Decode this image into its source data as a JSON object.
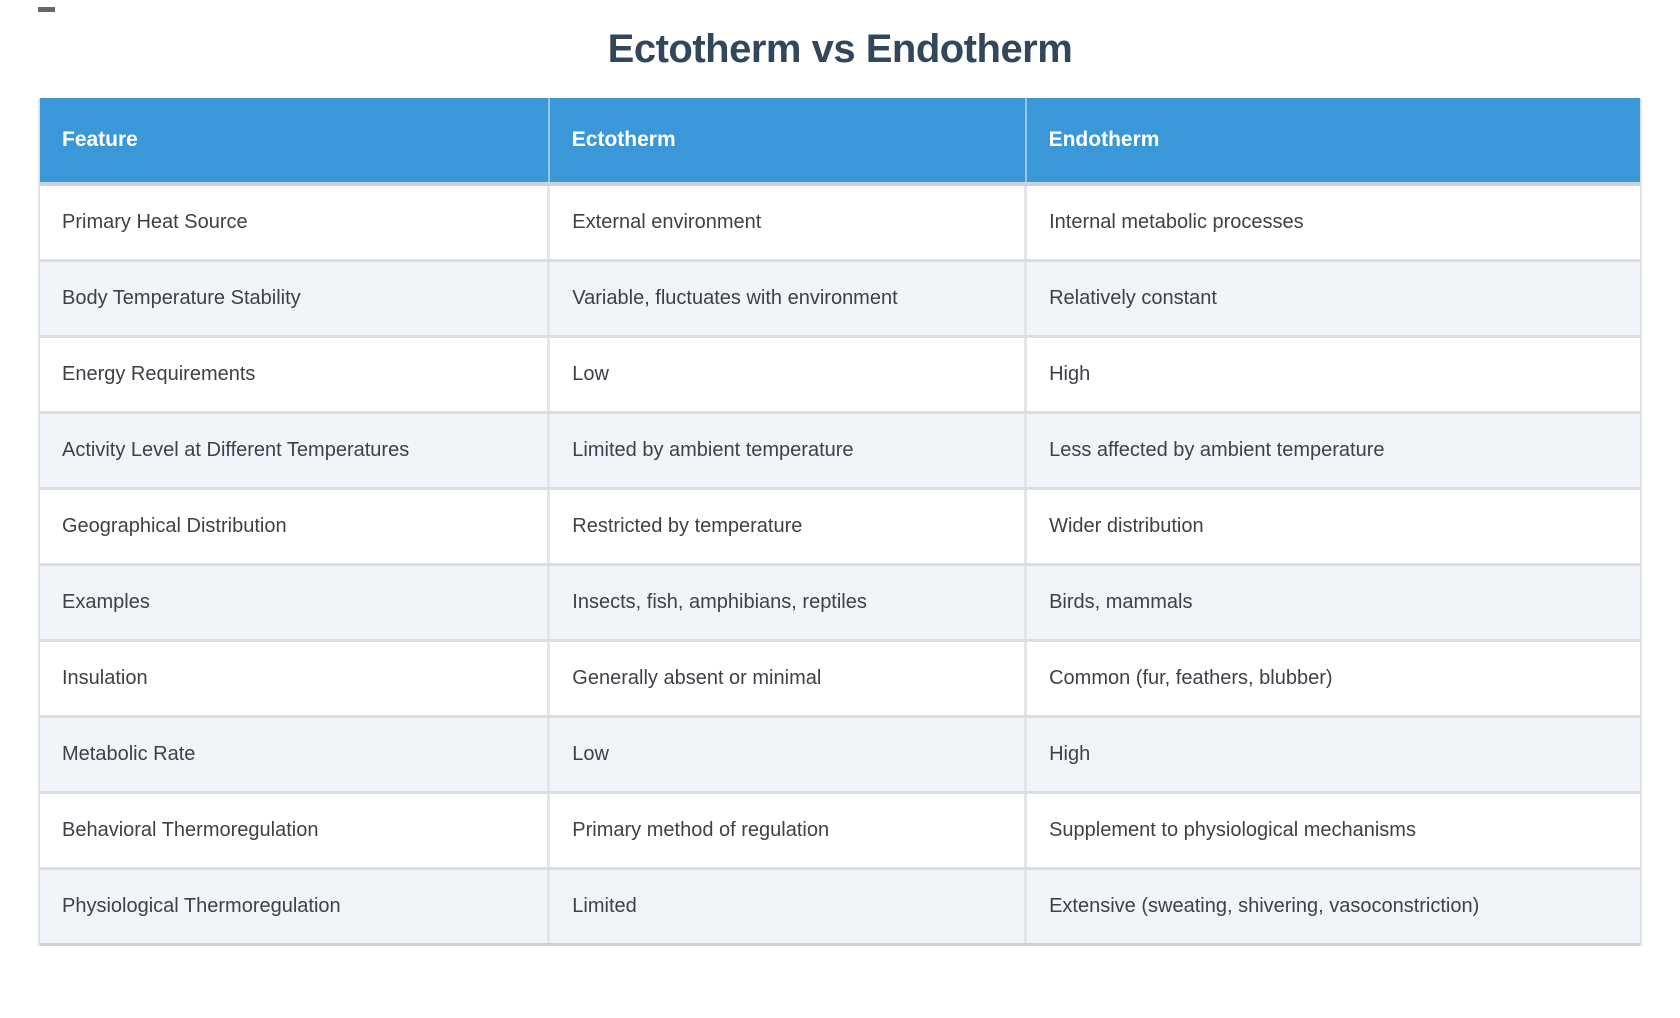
{
  "page": {
    "title": "Ectotherm vs Endotherm"
  },
  "table": {
    "headers": [
      {
        "label": "Feature"
      },
      {
        "label": "Ectotherm"
      },
      {
        "label": "Endotherm"
      }
    ],
    "rows": [
      {
        "feature": "Primary Heat Source",
        "ectotherm": "External environment",
        "endotherm": "Internal metabolic processes"
      },
      {
        "feature": "Body Temperature Stability",
        "ectotherm": "Variable, fluctuates with environment",
        "endotherm": "Relatively constant"
      },
      {
        "feature": "Energy Requirements",
        "ectotherm": "Low",
        "endotherm": "High"
      },
      {
        "feature": "Activity Level at Different Temperatures",
        "ectotherm": "Limited by ambient temperature",
        "endotherm": "Less affected by ambient temperature"
      },
      {
        "feature": "Geographical Distribution",
        "ectotherm": "Restricted by temperature",
        "endotherm": "Wider distribution"
      },
      {
        "feature": "Examples",
        "ectotherm": "Insects, fish, amphibians, reptiles",
        "endotherm": "Birds, mammals"
      },
      {
        "feature": "Insulation",
        "ectotherm": "Generally absent or minimal",
        "endotherm": "Common (fur, feathers, blubber)"
      },
      {
        "feature": "Metabolic Rate",
        "ectotherm": "Low",
        "endotherm": "High"
      },
      {
        "feature": "Behavioral Thermoregulation",
        "ectotherm": "Primary method of regulation",
        "endotherm": "Supplement to physiological mechanisms"
      },
      {
        "feature": "Physiological Thermoregulation",
        "ectotherm": "Limited",
        "endotherm": "Extensive (sweating, shivering, vasoconstriction)"
      }
    ]
  },
  "colors": {
    "header_bg": "#3b98d8",
    "header_text": "#ffffff",
    "row_bg": "#ffffff",
    "row_alt_bg": "#f1f4f9",
    "title_color": "#32475b",
    "cell_text": "#3d4248",
    "row_border": "#dcdde0"
  }
}
